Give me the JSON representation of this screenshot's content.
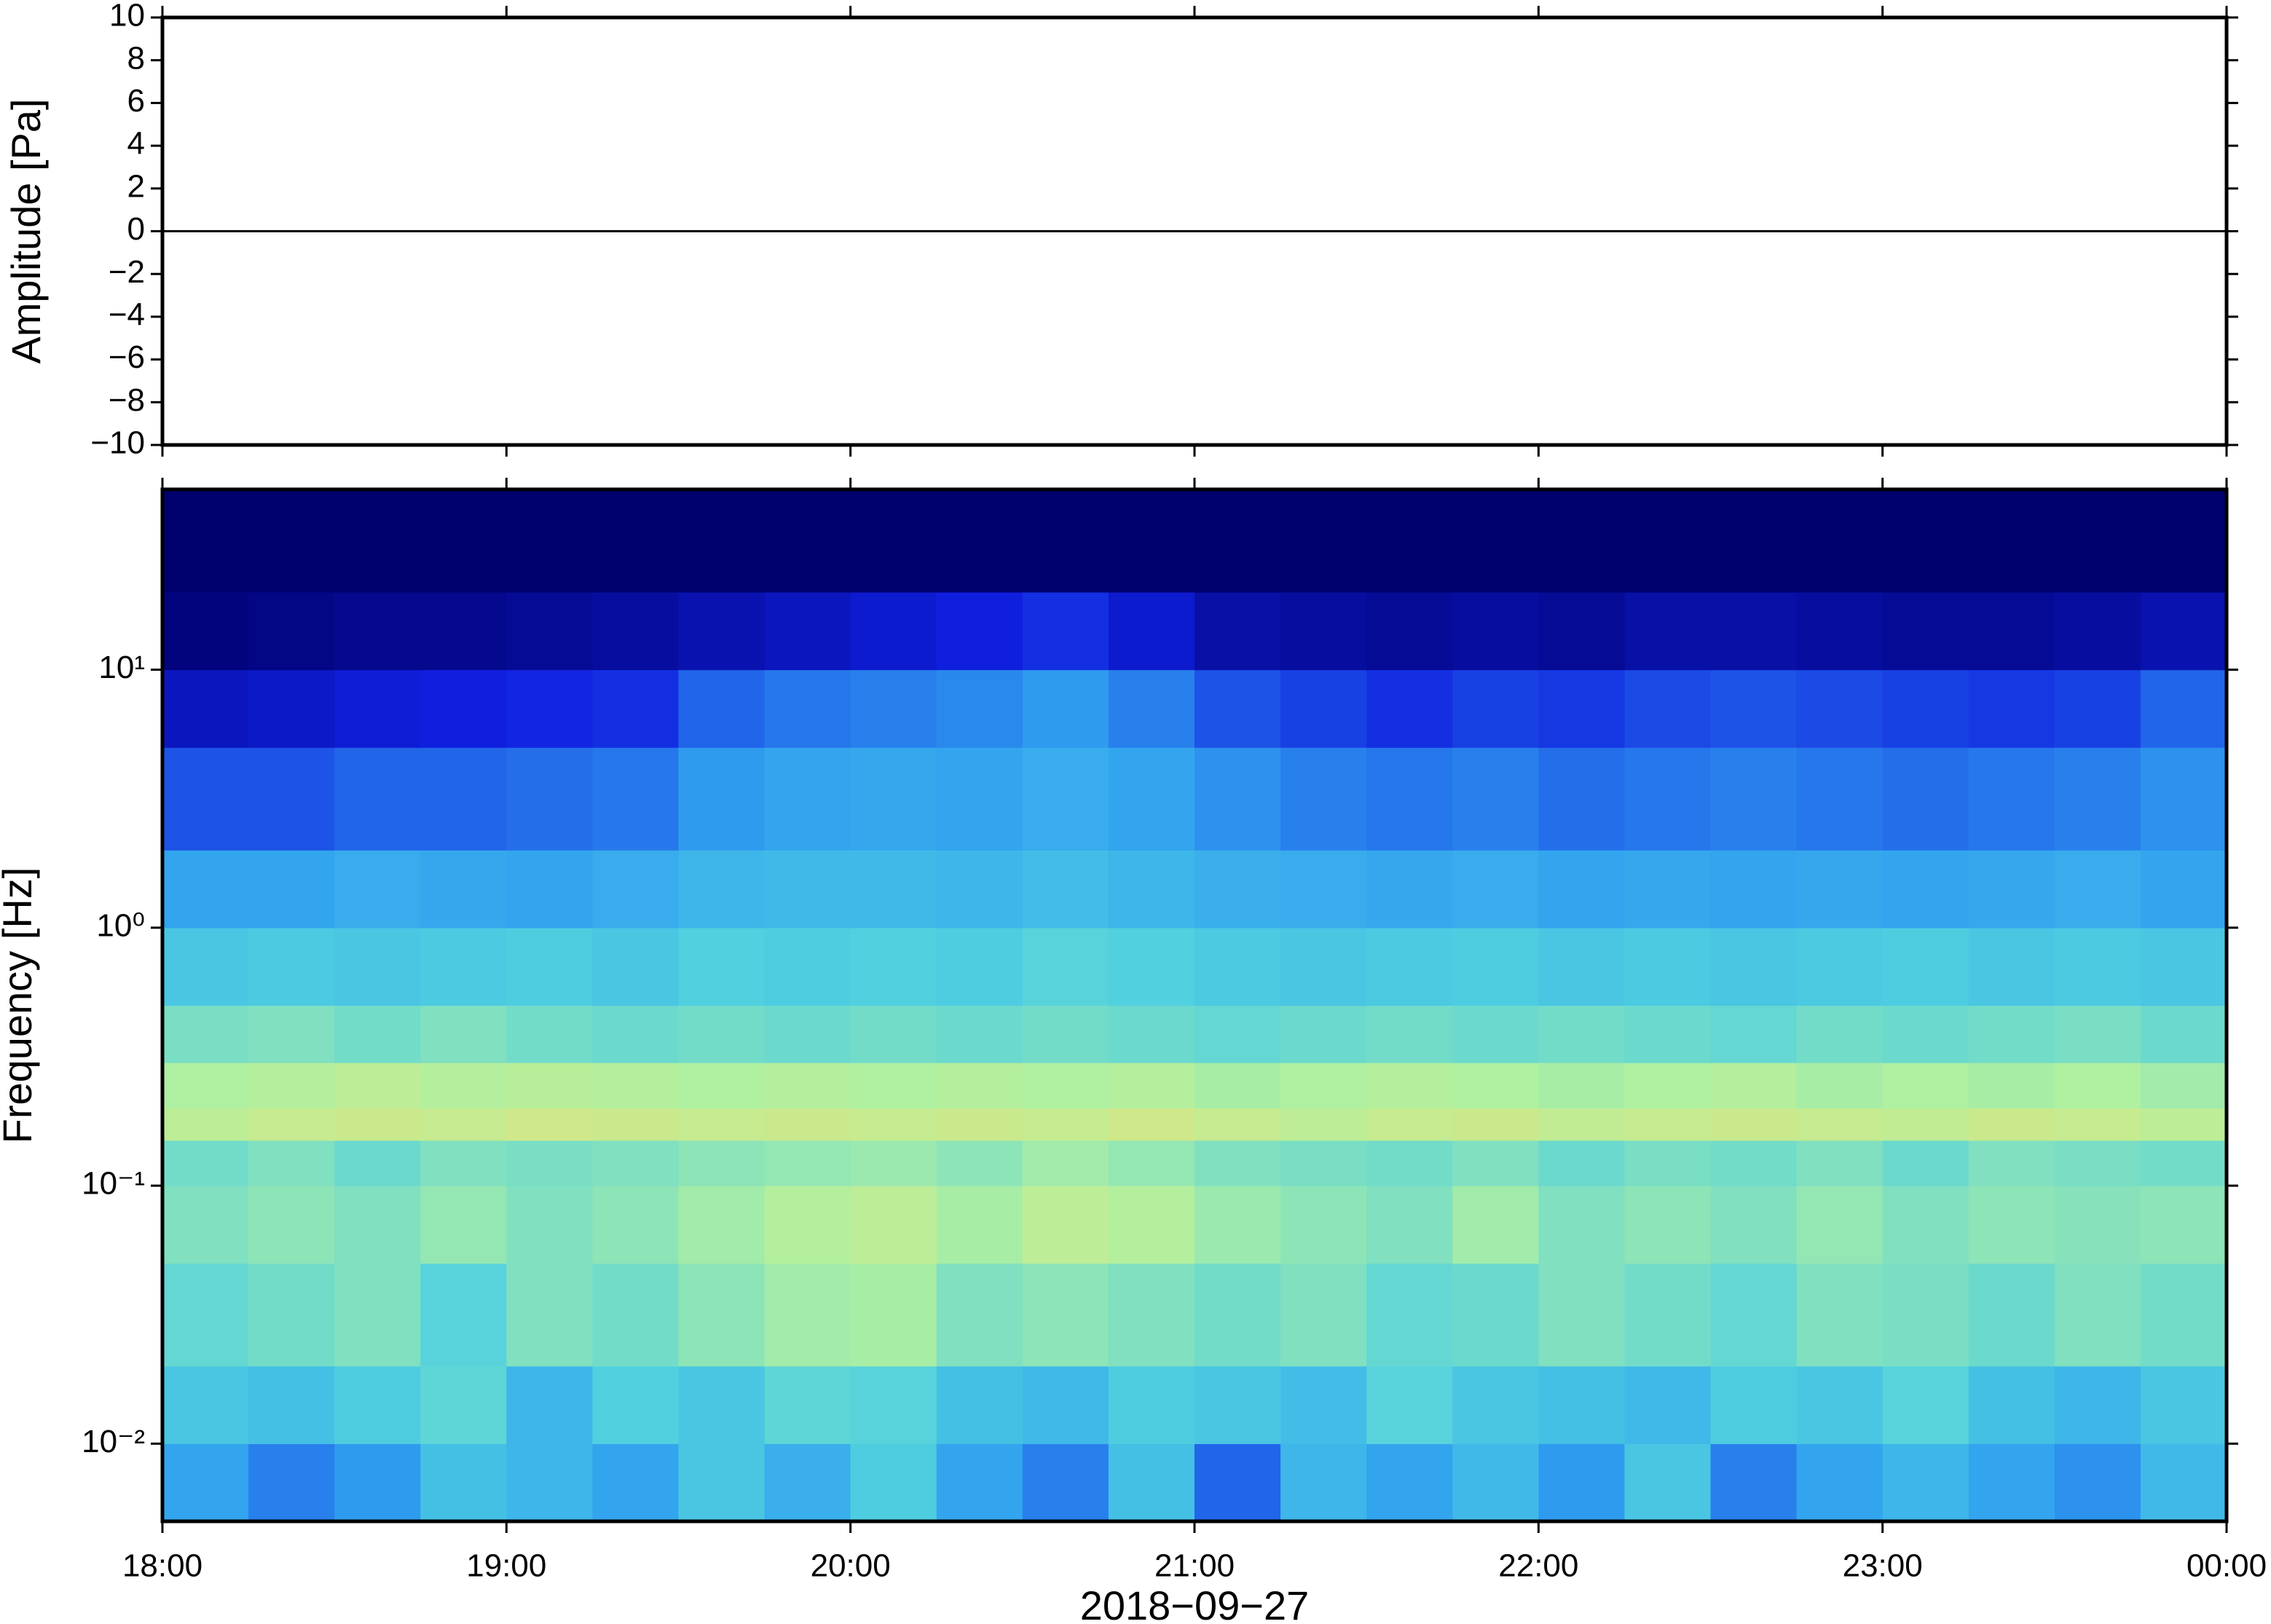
{
  "chart_data": [
    {
      "type": "line",
      "ylabel": "Amplitude [Pa]",
      "color": "#000000",
      "x": [
        18,
        24
      ],
      "values": [
        0,
        0
      ],
      "xlim": [
        18,
        24
      ],
      "xticks": [
        18,
        19,
        20,
        21,
        22,
        23,
        24
      ],
      "ylim": [
        -10,
        10
      ],
      "yticks": [
        {
          "value": -10,
          "label": "−10"
        },
        {
          "value": -8,
          "label": "−8"
        },
        {
          "value": -6,
          "label": "−6"
        },
        {
          "value": -4,
          "label": "−4"
        },
        {
          "value": -2,
          "label": "−2"
        },
        0,
        2,
        4,
        6,
        8,
        10
      ]
    },
    {
      "type": "heatmap",
      "ylabel": "Frequency [Hz]",
      "xlabel": "2018−09−27",
      "log_y": true,
      "xlim": [
        18,
        24
      ],
      "xticks": [
        {
          "value": 18,
          "label": "18:00"
        },
        {
          "value": 19,
          "label": "19:00"
        },
        {
          "value": 20,
          "label": "20:00"
        },
        {
          "value": 21,
          "label": "21:00"
        },
        {
          "value": 22,
          "label": "22:00"
        },
        {
          "value": 23,
          "label": "23:00"
        },
        {
          "value": 24,
          "label": "00:00"
        }
      ],
      "ylim": [
        0.005,
        50
      ],
      "yticks": [
        {
          "value": 0.01,
          "label": "10⁻²"
        },
        {
          "value": 0.1,
          "label": "10⁻¹"
        },
        {
          "value": 1,
          "label": "10⁰"
        },
        {
          "value": 10,
          "label": "10¹"
        }
      ],
      "colormap": [
        "#00006e",
        "#1020e0",
        "#30a0f0",
        "#50d0e0",
        "#b0f0a0",
        "#f0e070",
        "#f0a040",
        "#d02010"
      ],
      "x_edges": [
        18,
        18.25,
        18.5,
        18.75,
        19,
        19.25,
        19.5,
        19.75,
        20,
        20.25,
        20.5,
        20.75,
        21,
        21.25,
        21.5,
        21.75,
        22,
        22.25,
        22.5,
        22.75,
        23,
        23.25,
        23.5,
        23.75,
        24
      ],
      "y_edges": [
        0.005,
        0.01,
        0.02,
        0.05,
        0.1,
        0.15,
        0.2,
        0.3,
        0.5,
        1,
        2,
        5,
        10,
        20,
        50
      ],
      "values": [
        [
          0.3,
          0.25,
          0.28,
          0.38,
          0.35,
          0.3,
          0.4,
          0.33,
          0.42,
          0.3,
          0.25,
          0.38,
          0.22,
          0.35,
          0.3,
          0.36,
          0.28,
          0.4,
          0.25,
          0.3,
          0.35,
          0.3,
          0.27,
          0.36
        ],
        [
          0.4,
          0.38,
          0.42,
          0.45,
          0.35,
          0.43,
          0.4,
          0.45,
          0.44,
          0.38,
          0.36,
          0.42,
          0.4,
          0.37,
          0.44,
          0.4,
          0.38,
          0.36,
          0.42,
          0.4,
          0.44,
          0.38,
          0.35,
          0.4
        ],
        [
          0.46,
          0.48,
          0.5,
          0.44,
          0.5,
          0.48,
          0.52,
          0.55,
          0.56,
          0.5,
          0.52,
          0.5,
          0.48,
          0.5,
          0.46,
          0.47,
          0.5,
          0.48,
          0.46,
          0.5,
          0.49,
          0.47,
          0.5,
          0.48
        ],
        [
          0.5,
          0.52,
          0.5,
          0.53,
          0.5,
          0.52,
          0.55,
          0.58,
          0.6,
          0.56,
          0.6,
          0.58,
          0.54,
          0.52,
          0.5,
          0.55,
          0.5,
          0.52,
          0.5,
          0.53,
          0.5,
          0.52,
          0.51,
          0.52
        ],
        [
          0.48,
          0.5,
          0.47,
          0.5,
          0.49,
          0.5,
          0.52,
          0.53,
          0.54,
          0.52,
          0.55,
          0.53,
          0.5,
          0.49,
          0.48,
          0.5,
          0.47,
          0.49,
          0.48,
          0.5,
          0.47,
          0.5,
          0.49,
          0.48
        ],
        [
          0.6,
          0.62,
          0.63,
          0.62,
          0.64,
          0.63,
          0.62,
          0.63,
          0.62,
          0.63,
          0.62,
          0.64,
          0.62,
          0.6,
          0.62,
          0.63,
          0.61,
          0.62,
          0.63,
          0.62,
          0.61,
          0.63,
          0.62,
          0.6
        ],
        [
          0.57,
          0.58,
          0.6,
          0.58,
          0.59,
          0.58,
          0.57,
          0.58,
          0.57,
          0.58,
          0.57,
          0.58,
          0.56,
          0.57,
          0.58,
          0.57,
          0.56,
          0.57,
          0.58,
          0.56,
          0.57,
          0.56,
          0.57,
          0.55
        ],
        [
          0.49,
          0.5,
          0.48,
          0.5,
          0.48,
          0.47,
          0.48,
          0.47,
          0.48,
          0.47,
          0.48,
          0.47,
          0.46,
          0.47,
          0.48,
          0.47,
          0.48,
          0.47,
          0.46,
          0.48,
          0.47,
          0.48,
          0.49,
          0.47
        ],
        [
          0.4,
          0.41,
          0.4,
          0.41,
          0.42,
          0.4,
          0.43,
          0.42,
          0.43,
          0.42,
          0.44,
          0.43,
          0.41,
          0.4,
          0.41,
          0.42,
          0.4,
          0.41,
          0.4,
          0.41,
          0.42,
          0.4,
          0.41,
          0.4
        ],
        [
          0.3,
          0.3,
          0.32,
          0.31,
          0.3,
          0.32,
          0.35,
          0.36,
          0.36,
          0.35,
          0.37,
          0.35,
          0.33,
          0.32,
          0.31,
          0.32,
          0.3,
          0.31,
          0.3,
          0.31,
          0.3,
          0.31,
          0.32,
          0.3
        ],
        [
          0.2,
          0.2,
          0.22,
          0.22,
          0.23,
          0.24,
          0.28,
          0.3,
          0.31,
          0.3,
          0.32,
          0.3,
          0.27,
          0.25,
          0.24,
          0.25,
          0.23,
          0.24,
          0.25,
          0.24,
          0.23,
          0.24,
          0.25,
          0.27
        ],
        [
          0.1,
          0.11,
          0.13,
          0.14,
          0.15,
          0.16,
          0.22,
          0.24,
          0.25,
          0.26,
          0.28,
          0.25,
          0.2,
          0.18,
          0.16,
          0.18,
          0.17,
          0.19,
          0.2,
          0.19,
          0.18,
          0.17,
          0.18,
          0.22
        ],
        [
          0.02,
          0.03,
          0.04,
          0.04,
          0.05,
          0.06,
          0.08,
          0.1,
          0.12,
          0.14,
          0.16,
          0.12,
          0.07,
          0.06,
          0.05,
          0.06,
          0.05,
          0.07,
          0.07,
          0.06,
          0.05,
          0.05,
          0.06,
          0.08
        ],
        [
          0,
          0,
          0,
          0,
          0,
          0,
          0,
          0,
          0,
          0,
          0,
          0,
          0,
          0,
          0,
          0,
          0,
          0,
          0,
          0,
          0,
          0,
          0,
          0
        ]
      ]
    }
  ]
}
